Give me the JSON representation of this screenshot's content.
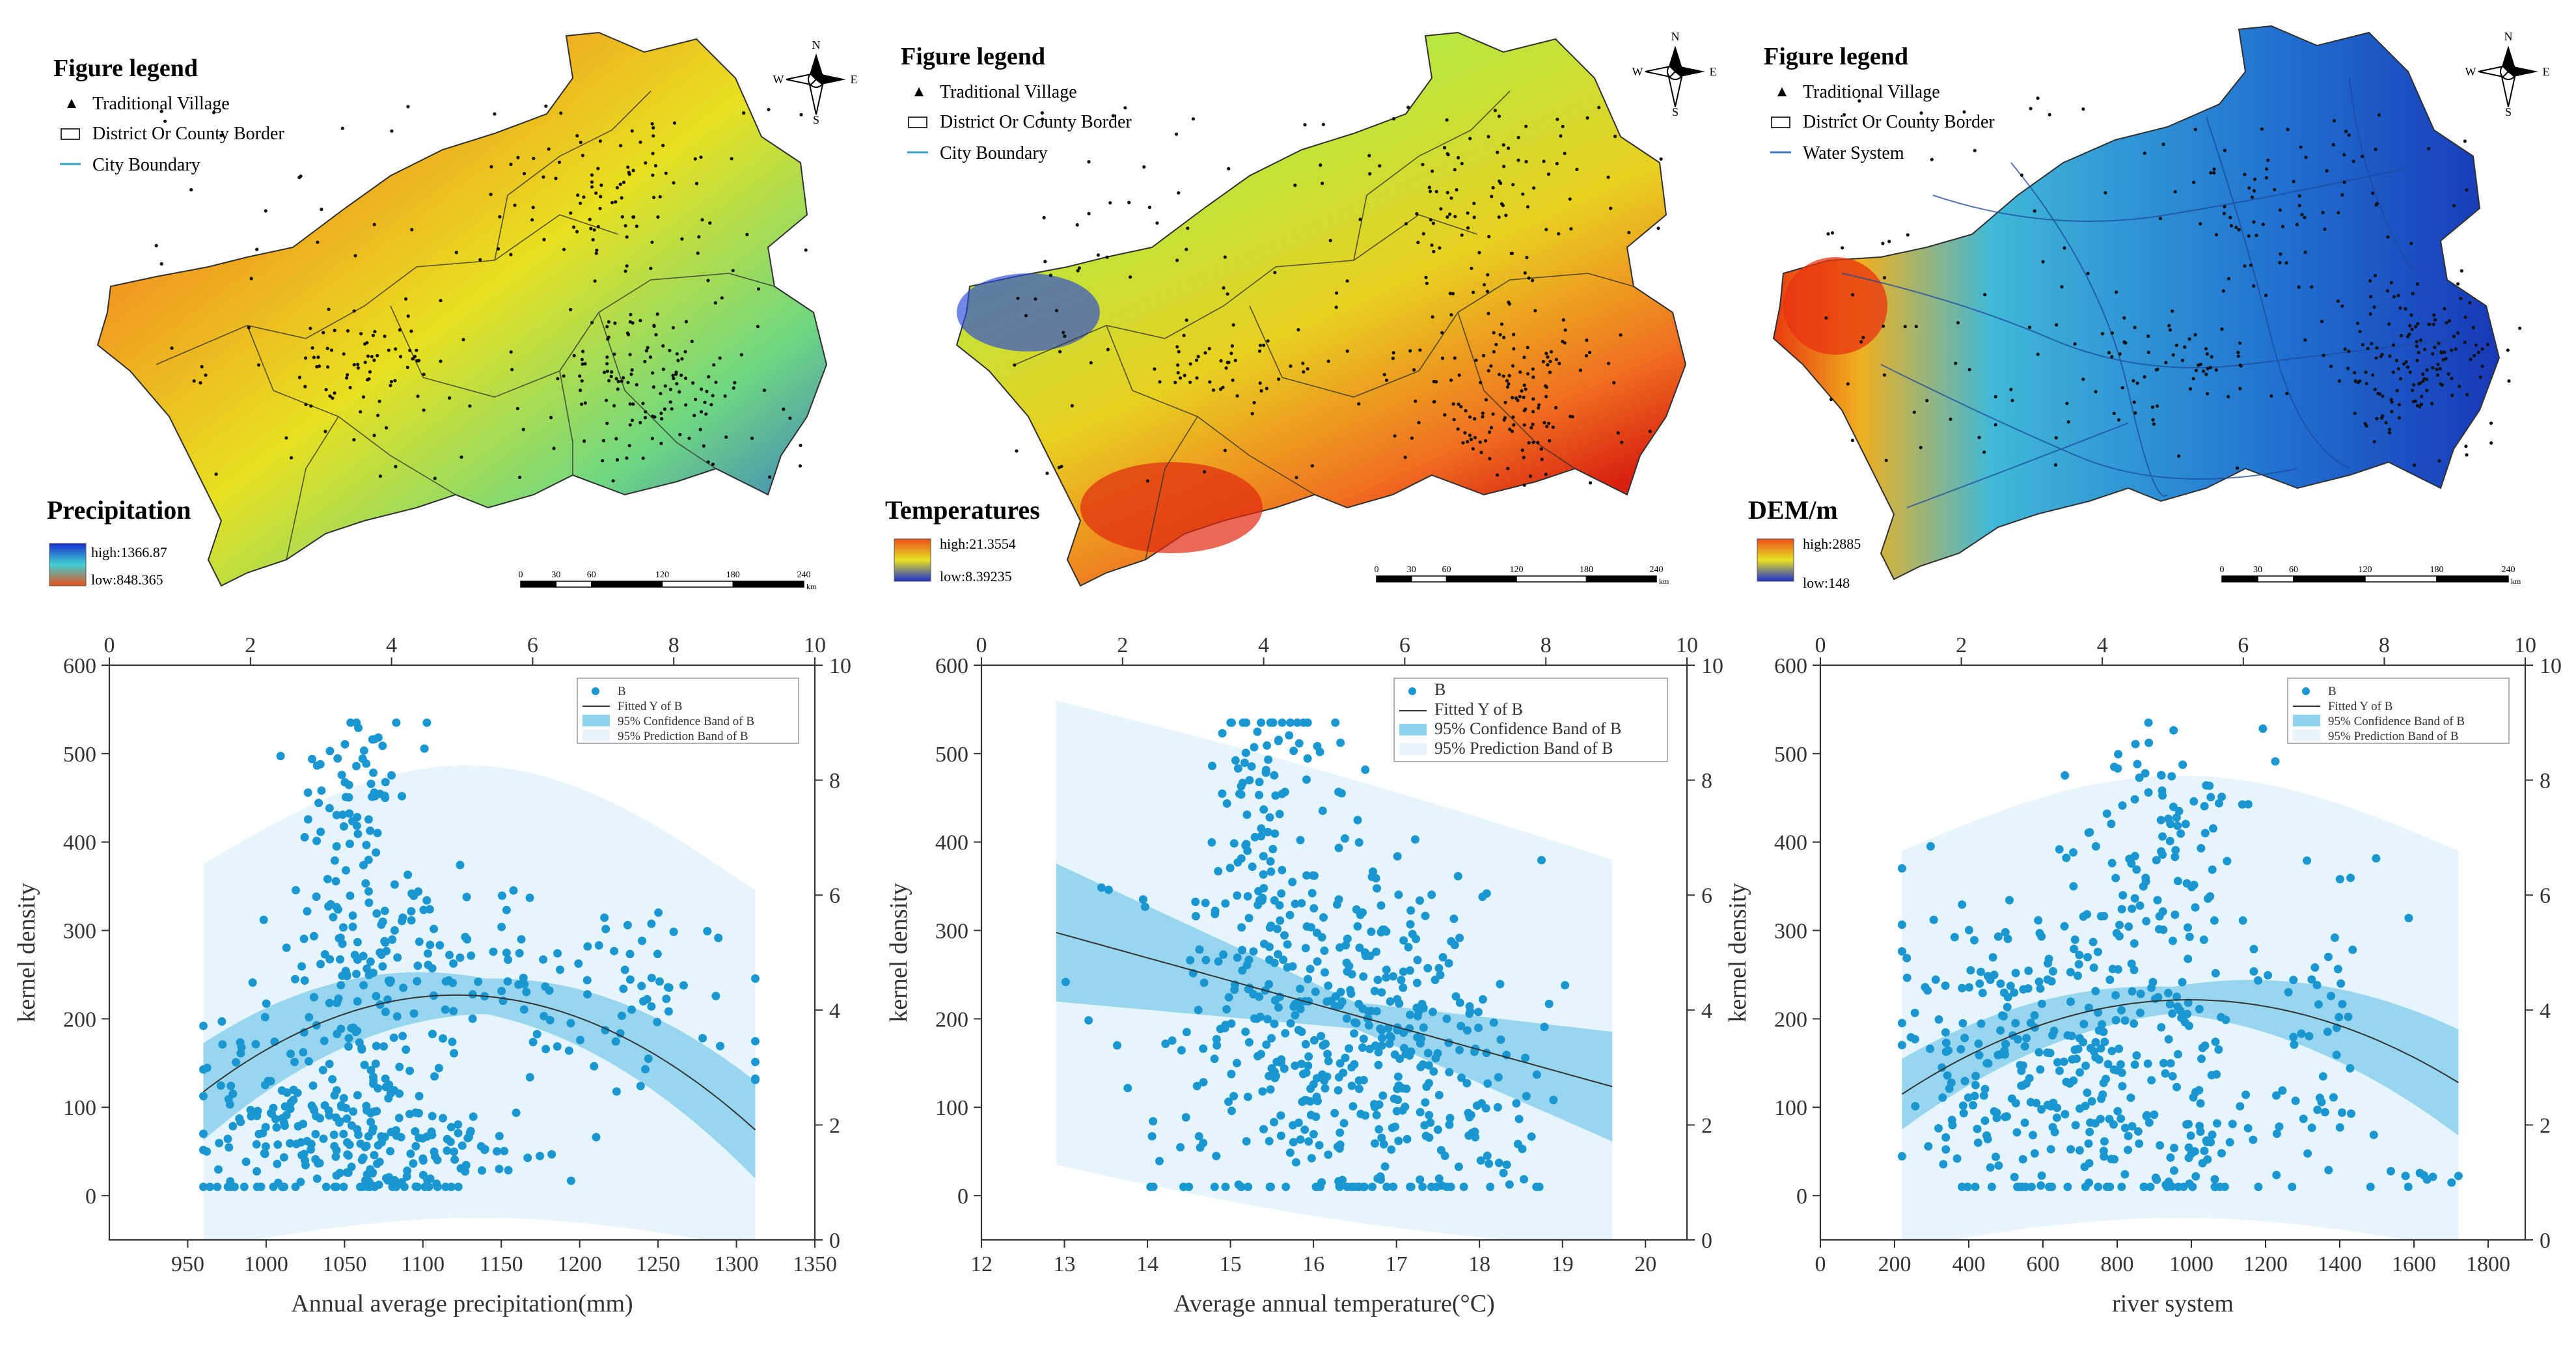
{
  "figure": {
    "maps": [
      {
        "legend_title": "Figure legend",
        "legend_items": [
          {
            "label": "Traditional Village",
            "kind": "triangle"
          },
          {
            "label": "District Or County Border",
            "kind": "rect"
          },
          {
            "label": "City Boundary",
            "kind": "line"
          }
        ],
        "raster_title": "Precipitation",
        "high_label": "high:1366.87",
        "low_label": "low:848.365",
        "ramp_top_color": "#1a2fd0",
        "ramp_bottom_color": "#e8501c",
        "scale_ticks": [
          "0",
          "30",
          "60",
          "120",
          "180",
          "240"
        ],
        "scale_unit": "km",
        "north": {
          "n": "N",
          "s": "S",
          "e": "E",
          "w": "W"
        }
      },
      {
        "legend_title": "Figure legend",
        "legend_items": [
          {
            "label": "Traditional Village",
            "kind": "triangle"
          },
          {
            "label": "District Or County Border",
            "kind": "rect"
          },
          {
            "label": "City Boundary",
            "kind": "line"
          }
        ],
        "raster_title": "Temperatures",
        "high_label": "high:21.3554",
        "low_label": "low:8.39235",
        "ramp_top_color": "#e8501c",
        "ramp_bottom_color": "#1a2fd0",
        "scale_ticks": [
          "0",
          "30",
          "60",
          "120",
          "180",
          "240"
        ],
        "scale_unit": "km",
        "north": {
          "n": "N",
          "s": "S",
          "e": "E",
          "w": "W"
        }
      },
      {
        "legend_title": "Figure legend",
        "legend_items": [
          {
            "label": "Traditional Village",
            "kind": "triangle"
          },
          {
            "label": "District Or County Border",
            "kind": "rect"
          },
          {
            "label": "Water System",
            "kind": "line"
          }
        ],
        "raster_title": "DEM/m",
        "high_label": "high:2885",
        "low_label": "low:148",
        "ramp_top_color": "#e8501c",
        "ramp_bottom_color": "#1a2fd0",
        "scale_ticks": [
          "0",
          "30",
          "60",
          "120",
          "180",
          "240"
        ],
        "scale_unit": "km",
        "north": {
          "n": "N",
          "s": "S",
          "e": "E",
          "w": "W"
        }
      }
    ]
  },
  "chart_data": [
    {
      "type": "scatter",
      "xlabel": "Annual average precipitation(mm)",
      "ylabel": "kernel density",
      "xlim": [
        900,
        1350
      ],
      "ylim": [
        -50,
        600
      ],
      "x_ticks": [
        950,
        1000,
        1050,
        1100,
        1150,
        1200,
        1250,
        1300,
        1350
      ],
      "y_ticks": [
        0,
        100,
        200,
        300,
        400,
        500,
        600
      ],
      "top_axis": {
        "range": [
          0,
          10
        ],
        "ticks": [
          0,
          2,
          4,
          6,
          8,
          10
        ]
      },
      "right_axis": {
        "range": [
          0,
          10
        ],
        "ticks": [
          0,
          2,
          4,
          6,
          8,
          10
        ]
      },
      "legend": [
        "B",
        "Fitted Y of B",
        "95% Confidence Band of B",
        "95% Prediction Band of B"
      ],
      "fit": {
        "x_range": [
          960,
          1312
        ],
        "coeffs": [
          -0.0042,
          9.42,
          -5055
        ],
        "ci": [
          [
            960,
            55
          ],
          [
            1140,
            20
          ],
          [
            1312,
            55
          ]
        ],
        "pi_top": [
          [
            960,
            375
          ],
          [
            1150,
            485
          ],
          [
            1312,
            345
          ]
        ],
        "pi_bottom": [
          [
            960,
            -60
          ],
          [
            1140,
            -25
          ],
          [
            1312,
            -60
          ]
        ]
      },
      "clusters": [
        {
          "cx": 1060,
          "sx": 25,
          "cy": 280,
          "sy": 110,
          "n": 160
        },
        {
          "cx": 1060,
          "sx": 12,
          "cy": 470,
          "sy": 40,
          "n": 35
        },
        {
          "cx": 1040,
          "sx": 40,
          "cy": 70,
          "sy": 50,
          "n": 170
        },
        {
          "cx": 1130,
          "sx": 30,
          "cy": 280,
          "sy": 40,
          "n": 40
        },
        {
          "cx": 1230,
          "sx": 50,
          "cy": 220,
          "sy": 50,
          "n": 70
        },
        {
          "cx": 1120,
          "sx": 30,
          "cy": 50,
          "sy": 25,
          "n": 55
        },
        {
          "cx": 985,
          "sx": 20,
          "cy": 100,
          "sy": 80,
          "n": 40
        }
      ]
    },
    {
      "type": "scatter",
      "xlabel": "Average annual temperature(°C)",
      "ylabel": "kernel density",
      "xlim": [
        12,
        20.5
      ],
      "ylim": [
        -50,
        600
      ],
      "x_ticks": [
        12,
        13,
        14,
        15,
        16,
        17,
        18,
        19,
        20
      ],
      "y_ticks": [
        0,
        100,
        200,
        300,
        400,
        500,
        600
      ],
      "top_axis": {
        "range": [
          0,
          10
        ],
        "ticks": [
          0,
          2,
          4,
          6,
          8,
          10
        ]
      },
      "right_axis": {
        "range": [
          0,
          10
        ],
        "ticks": [
          0,
          2,
          4,
          6,
          8,
          10
        ]
      },
      "legend": [
        "B",
        "Fitted Y of B",
        "95% Confidence Band of B",
        "95% Prediction Band of B"
      ],
      "fit": {
        "x_range": [
          12.9,
          19.6
        ],
        "coeffs": [
          0,
          -26,
          633
        ],
        "ci": [
          [
            12.9,
            78
          ],
          [
            16.5,
            15
          ],
          [
            19.6,
            62
          ]
        ],
        "pi_top": [
          [
            12.9,
            560
          ],
          [
            16.5,
            470
          ],
          [
            19.6,
            380
          ]
        ],
        "pi_bottom": [
          [
            12.9,
            35
          ],
          [
            16.5,
            -30
          ],
          [
            19.6,
            -60
          ]
        ]
      },
      "clusters": [
        {
          "cx": 15.4,
          "sx": 0.45,
          "cy": 320,
          "sy": 120,
          "n": 150
        },
        {
          "cx": 16.5,
          "sx": 0.7,
          "cy": 150,
          "sy": 110,
          "n": 260
        },
        {
          "cx": 17.6,
          "sx": 0.6,
          "cy": 200,
          "sy": 90,
          "n": 90
        },
        {
          "cx": 18.5,
          "sx": 0.6,
          "cy": 60,
          "sy": 50,
          "n": 25
        },
        {
          "cx": 14.5,
          "sx": 0.5,
          "cy": 120,
          "sy": 100,
          "n": 30
        },
        {
          "cx": 15.5,
          "sx": 0.3,
          "cy": 480,
          "sy": 35,
          "n": 30
        }
      ]
    },
    {
      "type": "scatter",
      "xlabel": "river system",
      "ylabel": "kernel density",
      "xlim": [
        0,
        1900
      ],
      "ylim": [
        -50,
        600
      ],
      "x_ticks": [
        0,
        200,
        400,
        600,
        800,
        1000,
        1200,
        1400,
        1600,
        1800
      ],
      "y_ticks": [
        0,
        100,
        200,
        300,
        400,
        500,
        600
      ],
      "top_axis": {
        "range": [
          0,
          10
        ],
        "ticks": [
          0,
          2,
          4,
          6,
          8,
          10
        ]
      },
      "right_axis": {
        "range": [
          0,
          10
        ],
        "ticks": [
          0,
          2,
          4,
          6,
          8,
          10
        ]
      },
      "legend": [
        "B",
        "Fitted Y of B",
        "95% Confidence Band of B",
        "95% Prediction Band of B"
      ],
      "fit": {
        "x_range": [
          220,
          1720
        ],
        "coeffs": [
          -0.000178,
          0.354,
          45.6
        ],
        "ci": [
          [
            220,
            40
          ],
          [
            950,
            15
          ],
          [
            1720,
            60
          ]
        ],
        "pi_top": [
          [
            220,
            390
          ],
          [
            950,
            475
          ],
          [
            1720,
            390
          ]
        ],
        "pi_bottom": [
          [
            220,
            -60
          ],
          [
            950,
            -25
          ],
          [
            1720,
            -60
          ]
        ]
      },
      "clusters": [
        {
          "cx": 650,
          "sx": 200,
          "cy": 150,
          "sy": 100,
          "n": 250
        },
        {
          "cx": 900,
          "sx": 150,
          "cy": 280,
          "sy": 100,
          "n": 110
        },
        {
          "cx": 950,
          "sx": 80,
          "cy": 470,
          "sy": 40,
          "n": 30
        },
        {
          "cx": 1050,
          "sx": 120,
          "cy": 60,
          "sy": 50,
          "n": 60
        },
        {
          "cx": 1350,
          "sx": 80,
          "cy": 200,
          "sy": 90,
          "n": 40
        },
        {
          "cx": 1600,
          "sx": 70,
          "cy": 20,
          "sy": 8,
          "n": 10
        },
        {
          "cx": 350,
          "sx": 80,
          "cy": 150,
          "sy": 80,
          "n": 40
        }
      ]
    }
  ]
}
